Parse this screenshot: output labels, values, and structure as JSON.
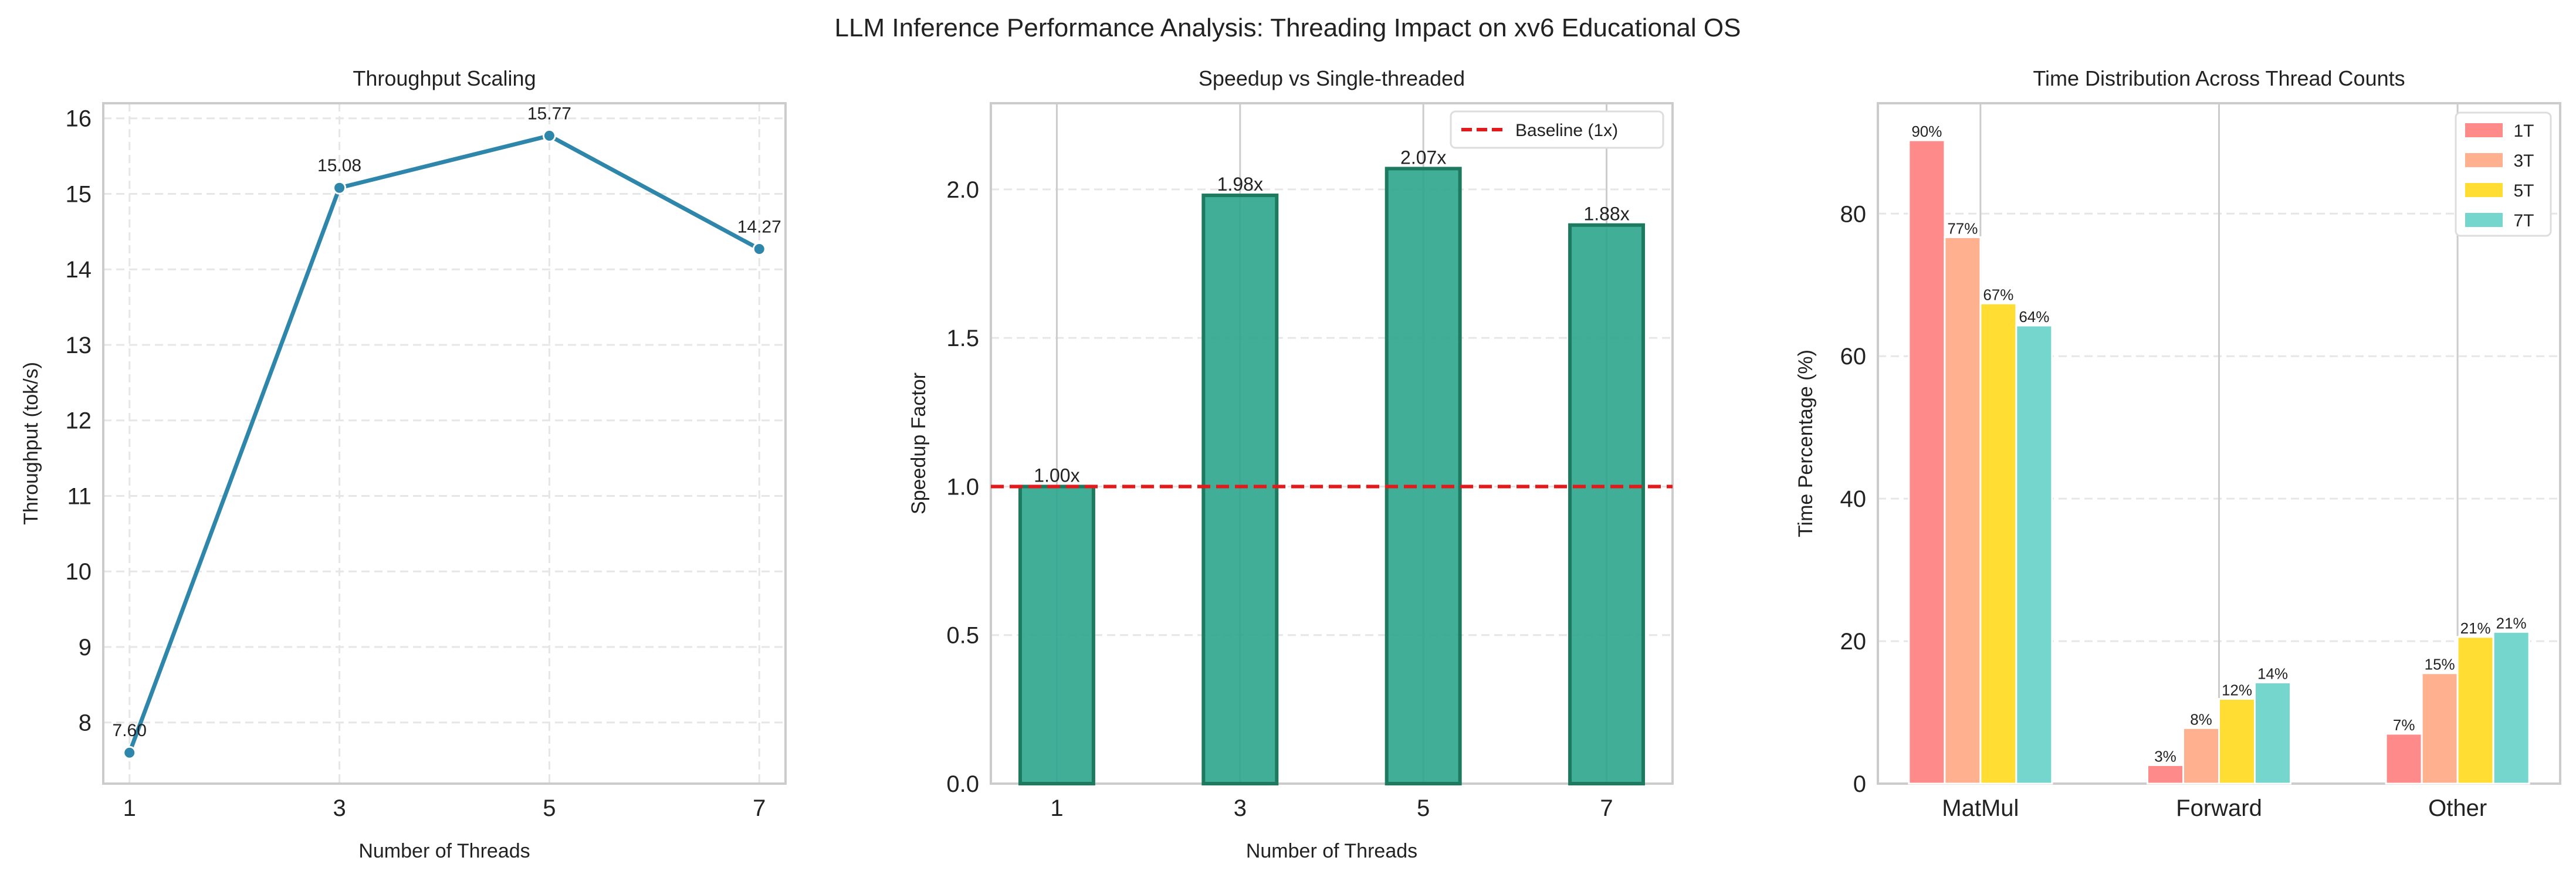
{
  "suptitle": "LLM Inference Performance Analysis: Threading Impact on xv6 Educational OS",
  "chart_data": [
    {
      "type": "line",
      "title": "Throughput Scaling",
      "xlabel": "Number of Threads",
      "ylabel": "Throughput (tok/s)",
      "x": [
        1,
        3,
        5,
        7
      ],
      "y": [
        7.6,
        15.08,
        15.77,
        14.27
      ],
      "data_labels": [
        "7.60",
        "15.08",
        "15.77",
        "14.27"
      ],
      "xticks": [
        "1",
        "3",
        "5",
        "7"
      ],
      "yticks": [
        8,
        9,
        10,
        11,
        12,
        13,
        14,
        15,
        16
      ],
      "xlim": [
        0.75,
        7.25
      ],
      "ylim": [
        7.19,
        16.2
      ],
      "grid": true,
      "color": "#2e86ab"
    },
    {
      "type": "bar",
      "title": "Speedup vs Single-threaded",
      "xlabel": "Number of Threads",
      "ylabel": "Speedup Factor",
      "categories": [
        "1",
        "3",
        "5",
        "7"
      ],
      "values": [
        1.0,
        1.98,
        2.07,
        1.88
      ],
      "data_labels": [
        "1.00x",
        "1.98x",
        "2.07x",
        "1.88x"
      ],
      "yticks": [
        "0.0",
        "0.5",
        "1.0",
        "1.5",
        "2.0"
      ],
      "ylim": [
        0,
        2.29
      ],
      "grid": true,
      "color": "#2ca58d",
      "edge_color": "#1e7a5e",
      "baseline": {
        "value": 1.0,
        "label": "Baseline (1x)",
        "color": "#e31a1c"
      },
      "legend": "top-right"
    },
    {
      "type": "bar",
      "title": "Time Distribution Across Thread Counts",
      "xlabel": "",
      "ylabel": "Time Percentage (%)",
      "categories": [
        "MatMul",
        "Forward",
        "Other"
      ],
      "series": [
        {
          "name": "1T",
          "values": [
            90.3,
            2.6,
            7.0
          ],
          "labels": [
            "90%",
            "3%",
            "7%"
          ],
          "color": "#ff8a8a"
        },
        {
          "name": "3T",
          "values": [
            76.7,
            7.8,
            15.5
          ],
          "labels": [
            "77%",
            "8%",
            "15%"
          ],
          "color": "#ffb08f"
        },
        {
          "name": "5T",
          "values": [
            67.4,
            11.9,
            20.6
          ],
          "labels": [
            "67%",
            "12%",
            "21%"
          ],
          "color": "#ffdd33"
        },
        {
          "name": "7T",
          "values": [
            64.3,
            14.2,
            21.3
          ],
          "labels": [
            "64%",
            "14%",
            "21%"
          ],
          "color": "#74d6cc"
        }
      ],
      "yticks": [
        0,
        20,
        40,
        60,
        80
      ],
      "ylim": [
        0,
        95.5
      ],
      "grid": true,
      "legend": "top-right"
    }
  ]
}
